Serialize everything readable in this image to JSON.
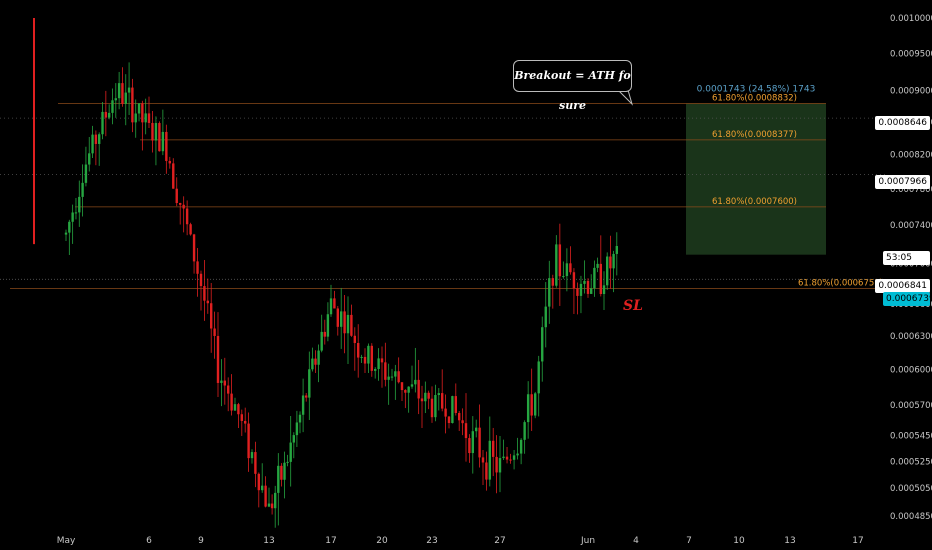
{
  "chart_data": {
    "type": "candlestick",
    "y_scale": "log",
    "ylim": [
      0.00047,
      0.00102
    ],
    "x_ticks": [
      "May",
      "6",
      "9",
      "13",
      "17",
      "20",
      "23",
      "27",
      "Jun",
      "4",
      "7",
      "10",
      "13",
      "17"
    ],
    "y_ticks": [
      "0.0010000",
      "0.0009500",
      "0.0009000",
      "0.0008600",
      "0.0008200",
      "0.0007800",
      "0.0007400",
      "0.0007000",
      "0.0006600",
      "0.0006300",
      "0.0006000",
      "0.0005700",
      "0.0005450",
      "0.0005250",
      "0.0005050",
      "0.0004850"
    ],
    "close_path": [
      [
        "May 1",
        0.00073
      ],
      [
        "May 2",
        0.0008
      ],
      [
        "May 3",
        0.00085
      ],
      [
        "May 4",
        0.0009
      ],
      [
        "May 5",
        0.00088
      ],
      [
        "May 6",
        0.00085
      ],
      [
        "May 7",
        0.00083
      ],
      [
        "May 8",
        0.00075
      ],
      [
        "May 9",
        0.00068
      ],
      [
        "May 10",
        0.0006
      ],
      [
        "May 11",
        0.00057
      ],
      [
        "May 12",
        0.00053
      ],
      [
        "May 13",
        0.00049
      ],
      [
        "May 14",
        0.00052
      ],
      [
        "May 15",
        0.00056
      ],
      [
        "May 16",
        0.00061
      ],
      [
        "May 17",
        0.00066
      ],
      [
        "May 18",
        0.00064
      ],
      [
        "May 19",
        0.00061
      ],
      [
        "May 20",
        0.0006
      ],
      [
        "May 21",
        0.00059
      ],
      [
        "May 22",
        0.00058
      ],
      [
        "May 23",
        0.00057
      ],
      [
        "May 24",
        0.00057
      ],
      [
        "May 25",
        0.00055
      ],
      [
        "May 26",
        0.00053
      ],
      [
        "May 27",
        0.00052
      ],
      [
        "May 28",
        0.00054
      ],
      [
        "May 29",
        0.00058
      ],
      [
        "May 30",
        0.0007
      ],
      [
        "May 31",
        0.00069
      ],
      [
        "Jun 1",
        0.00068
      ],
      [
        "Jun 2",
        0.00069
      ],
      [
        "Jun 3",
        0.00071
      ]
    ],
    "horizontal_levels": [
      {
        "label": "61.80%(0.0008832)",
        "value": 0.0008832
      },
      {
        "label": "61.80%(0.0008377)",
        "value": 0.0008377
      },
      {
        "label": "61.80%(0.0007600)",
        "value": 0.00076
      },
      {
        "label": "61.80%(0.0006751)",
        "value": 0.0006751
      }
    ],
    "dotted_levels": [
      0.0008646,
      0.0007966
    ],
    "target_box": {
      "from": 0.000709,
      "to": 0.0008832,
      "color": "#1f3d1f"
    },
    "target_label": "0.0001743 (24.58%) 1743",
    "price_badges": [
      "0.0008646",
      "0.0007966",
      "53:05",
      "0.0006841",
      "0.0006739"
    ],
    "annotations": {
      "callout": "Breakout = ATH fo sure",
      "stop_loss": "SL"
    },
    "colors": {
      "up": "#26a641",
      "down": "#e02020",
      "fib": "#f0a030",
      "label": "#5aa0c8"
    }
  }
}
